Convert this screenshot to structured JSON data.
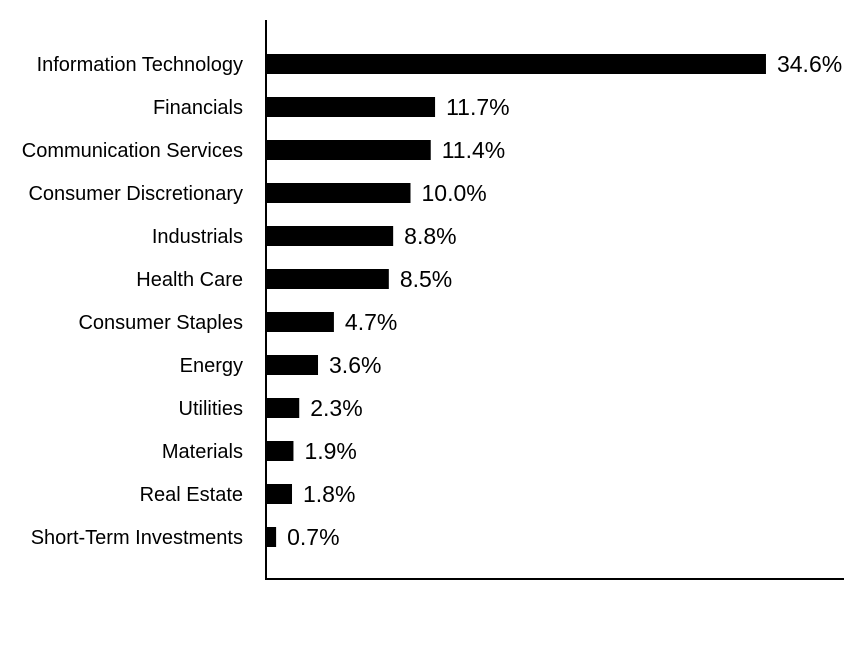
{
  "chart_data": {
    "type": "bar",
    "orientation": "horizontal",
    "categories": [
      "Information Technology",
      "Financials",
      "Communication Services",
      "Consumer Discretionary",
      "Industrials",
      "Health Care",
      "Consumer Staples",
      "Energy",
      "Utilities",
      "Materials",
      "Real Estate",
      "Short-Term Investments"
    ],
    "values": [
      34.6,
      11.7,
      11.4,
      10.0,
      8.8,
      8.5,
      4.7,
      3.6,
      2.3,
      1.9,
      1.8,
      0.7
    ],
    "value_labels": [
      "34.6%",
      "11.7%",
      "11.4%",
      "10.0%",
      "8.8%",
      "8.5%",
      "4.7%",
      "3.6%",
      "2.3%",
      "1.9%",
      "1.8%",
      "0.7%"
    ],
    "unit": "%",
    "title": "",
    "xlabel": "",
    "ylabel": "",
    "xlim": [
      0,
      40
    ],
    "grid": false,
    "legend": "none",
    "bar_color": "#000000",
    "axis_color": "#000000"
  }
}
